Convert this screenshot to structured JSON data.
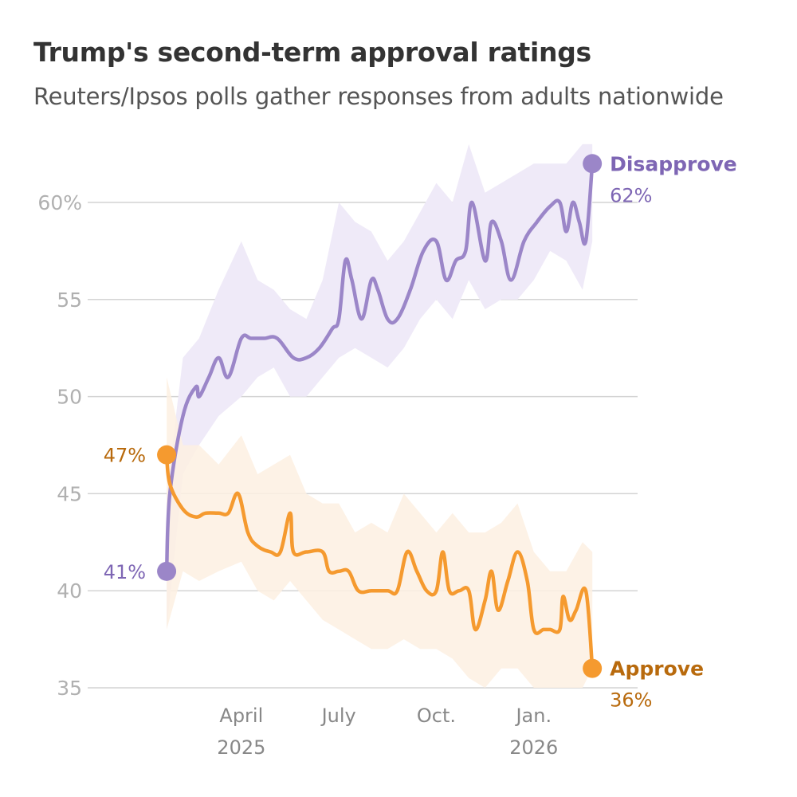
{
  "title": "Trump's second-term approval ratings",
  "subtitle": "Reuters/Ipsos polls gather responses from adults nationwide",
  "colors": {
    "disapprove": "#9b86c8",
    "disapprove_band": "#efeaf8",
    "disapprove_label": "#7e66b4",
    "approve": "#f59a2f",
    "approve_band": "#fdf0e2",
    "approve_label": "#b86a0d",
    "grid": "#d4d4d4"
  },
  "chart_data": {
    "type": "line",
    "title": "Trump's second-term approval ratings",
    "subtitle": "Reuters/Ipsos polls gather responses from adults nationwide",
    "ylim": [
      35,
      62
    ],
    "xlim": [
      -2.3,
      14.5
    ],
    "yticks": [
      {
        "value": 60,
        "label": "60%"
      },
      {
        "value": 55,
        "label": "55"
      },
      {
        "value": 50,
        "label": "50"
      },
      {
        "value": 45,
        "label": "45"
      },
      {
        "value": 40,
        "label": "40"
      },
      {
        "value": 35,
        "label": "35"
      }
    ],
    "xticks": [
      {
        "value": 2.0,
        "line1": "April",
        "line2": "2025"
      },
      {
        "value": 5.0,
        "line1": "July",
        "line2": ""
      },
      {
        "value": 8.0,
        "line1": "Oct.",
        "line2": ""
      },
      {
        "value": 11.0,
        "line1": "Jan.",
        "line2": "2026"
      }
    ],
    "x_unit": "months since Feb. 1, 2025",
    "series": [
      {
        "name": "Disapprove",
        "start_label": "41%",
        "end_label": "62%",
        "points": [
          [
            -0.3,
            41
          ],
          [
            -0.2,
            45
          ],
          [
            0.2,
            49
          ],
          [
            0.6,
            50.5
          ],
          [
            0.7,
            50
          ],
          [
            1.0,
            51
          ],
          [
            1.3,
            52
          ],
          [
            1.6,
            51
          ],
          [
            2.0,
            53
          ],
          [
            2.3,
            53
          ],
          [
            2.7,
            53
          ],
          [
            3.1,
            53
          ],
          [
            3.6,
            52
          ],
          [
            4.0,
            52
          ],
          [
            4.4,
            52.5
          ],
          [
            4.8,
            53.5
          ],
          [
            5.0,
            54
          ],
          [
            5.2,
            57
          ],
          [
            5.4,
            56
          ],
          [
            5.7,
            54
          ],
          [
            6.0,
            56
          ],
          [
            6.2,
            55.5
          ],
          [
            6.5,
            54
          ],
          [
            6.8,
            54
          ],
          [
            7.2,
            55.5
          ],
          [
            7.6,
            57.5
          ],
          [
            8.0,
            58
          ],
          [
            8.3,
            56
          ],
          [
            8.6,
            57
          ],
          [
            8.9,
            57.5
          ],
          [
            9.1,
            60
          ],
          [
            9.5,
            57
          ],
          [
            9.7,
            59
          ],
          [
            10.0,
            58
          ],
          [
            10.3,
            56
          ],
          [
            10.7,
            58
          ],
          [
            11.1,
            59
          ],
          [
            11.5,
            59.8
          ],
          [
            11.8,
            60
          ],
          [
            12.0,
            58.5
          ],
          [
            12.2,
            60
          ],
          [
            12.4,
            59
          ],
          [
            12.6,
            58
          ],
          [
            12.8,
            62
          ]
        ],
        "band_upper": [
          [
            -0.3,
            45
          ],
          [
            0.2,
            52
          ],
          [
            0.7,
            53
          ],
          [
            1.3,
            55.5
          ],
          [
            2.0,
            58
          ],
          [
            2.5,
            56
          ],
          [
            3.0,
            55.5
          ],
          [
            3.5,
            54.5
          ],
          [
            4.0,
            54
          ],
          [
            4.5,
            56
          ],
          [
            5.0,
            60
          ],
          [
            5.5,
            59
          ],
          [
            6.0,
            58.5
          ],
          [
            6.5,
            57
          ],
          [
            7.0,
            58
          ],
          [
            7.5,
            59.5
          ],
          [
            8.0,
            61
          ],
          [
            8.5,
            60
          ],
          [
            9.0,
            63
          ],
          [
            9.5,
            60.5
          ],
          [
            10.0,
            61
          ],
          [
            10.5,
            61.5
          ],
          [
            11.0,
            62
          ],
          [
            11.5,
            62
          ],
          [
            12.0,
            62
          ],
          [
            12.5,
            63
          ],
          [
            12.8,
            63
          ]
        ],
        "band_lower": [
          [
            -0.3,
            38
          ],
          [
            0.2,
            46
          ],
          [
            0.7,
            47.5
          ],
          [
            1.3,
            49
          ],
          [
            2.0,
            50
          ],
          [
            2.5,
            51
          ],
          [
            3.0,
            51.5
          ],
          [
            3.5,
            50
          ],
          [
            4.0,
            50
          ],
          [
            4.5,
            51
          ],
          [
            5.0,
            52
          ],
          [
            5.5,
            52.5
          ],
          [
            6.0,
            52
          ],
          [
            6.5,
            51.5
          ],
          [
            7.0,
            52.5
          ],
          [
            7.5,
            54
          ],
          [
            8.0,
            55
          ],
          [
            8.5,
            54
          ],
          [
            9.0,
            56
          ],
          [
            9.5,
            54.5
          ],
          [
            10.0,
            55
          ],
          [
            10.5,
            55
          ],
          [
            11.0,
            56
          ],
          [
            11.5,
            57.5
          ],
          [
            12.0,
            57
          ],
          [
            12.5,
            55.5
          ],
          [
            12.8,
            58
          ]
        ]
      },
      {
        "name": "Approve",
        "start_label": "47%",
        "end_label": "36%",
        "points": [
          [
            -0.3,
            47
          ],
          [
            -0.2,
            45.5
          ],
          [
            0.2,
            44.2
          ],
          [
            0.6,
            43.8
          ],
          [
            0.9,
            44
          ],
          [
            1.3,
            44
          ],
          [
            1.6,
            44
          ],
          [
            1.9,
            45
          ],
          [
            2.2,
            43
          ],
          [
            2.5,
            42.3
          ],
          [
            2.9,
            42
          ],
          [
            3.2,
            42
          ],
          [
            3.5,
            44
          ],
          [
            3.6,
            42
          ],
          [
            4.0,
            42
          ],
          [
            4.5,
            42
          ],
          [
            4.7,
            41
          ],
          [
            5.0,
            41
          ],
          [
            5.3,
            41
          ],
          [
            5.6,
            40
          ],
          [
            6.0,
            40
          ],
          [
            6.5,
            40
          ],
          [
            6.8,
            40
          ],
          [
            7.1,
            42
          ],
          [
            7.4,
            41
          ],
          [
            7.7,
            40
          ],
          [
            8.0,
            40
          ],
          [
            8.2,
            42
          ],
          [
            8.4,
            40
          ],
          [
            8.7,
            40
          ],
          [
            9.0,
            40
          ],
          [
            9.2,
            38
          ],
          [
            9.5,
            39.5
          ],
          [
            9.7,
            41
          ],
          [
            9.9,
            39
          ],
          [
            10.2,
            40.5
          ],
          [
            10.5,
            42
          ],
          [
            10.8,
            40.5
          ],
          [
            11.0,
            38
          ],
          [
            11.3,
            38
          ],
          [
            11.5,
            38
          ],
          [
            11.8,
            38
          ],
          [
            11.9,
            39.7
          ],
          [
            12.1,
            38.5
          ],
          [
            12.3,
            39
          ],
          [
            12.6,
            40
          ],
          [
            12.8,
            36
          ]
        ],
        "band_upper": [
          [
            -0.3,
            51
          ],
          [
            0.2,
            47.5
          ],
          [
            0.7,
            47.5
          ],
          [
            1.3,
            46.5
          ],
          [
            2.0,
            48
          ],
          [
            2.5,
            46
          ],
          [
            3.0,
            46.5
          ],
          [
            3.5,
            47
          ],
          [
            4.0,
            45
          ],
          [
            4.5,
            44.5
          ],
          [
            5.0,
            44.5
          ],
          [
            5.5,
            43
          ],
          [
            6.0,
            43.5
          ],
          [
            6.5,
            43
          ],
          [
            7.0,
            45
          ],
          [
            7.5,
            44
          ],
          [
            8.0,
            43
          ],
          [
            8.5,
            44
          ],
          [
            9.0,
            43
          ],
          [
            9.5,
            43
          ],
          [
            10.0,
            43.5
          ],
          [
            10.5,
            44.5
          ],
          [
            11.0,
            42
          ],
          [
            11.5,
            41
          ],
          [
            12.0,
            41
          ],
          [
            12.5,
            42.5
          ],
          [
            12.8,
            42
          ]
        ],
        "band_lower": [
          [
            -0.3,
            38
          ],
          [
            0.2,
            41
          ],
          [
            0.7,
            40.5
          ],
          [
            1.3,
            41
          ],
          [
            2.0,
            41.5
          ],
          [
            2.5,
            40
          ],
          [
            3.0,
            39.5
          ],
          [
            3.5,
            40.5
          ],
          [
            4.0,
            39.5
          ],
          [
            4.5,
            38.5
          ],
          [
            5.0,
            38
          ],
          [
            5.5,
            37.5
          ],
          [
            6.0,
            37
          ],
          [
            6.5,
            37
          ],
          [
            7.0,
            37.5
          ],
          [
            7.5,
            37
          ],
          [
            8.0,
            37
          ],
          [
            8.5,
            36.5
          ],
          [
            9.0,
            35.5
          ],
          [
            9.5,
            35
          ],
          [
            10.0,
            36
          ],
          [
            10.5,
            36
          ],
          [
            11.0,
            35
          ],
          [
            11.5,
            35
          ],
          [
            12.0,
            35
          ],
          [
            12.5,
            35
          ],
          [
            12.8,
            36
          ]
        ]
      }
    ]
  }
}
